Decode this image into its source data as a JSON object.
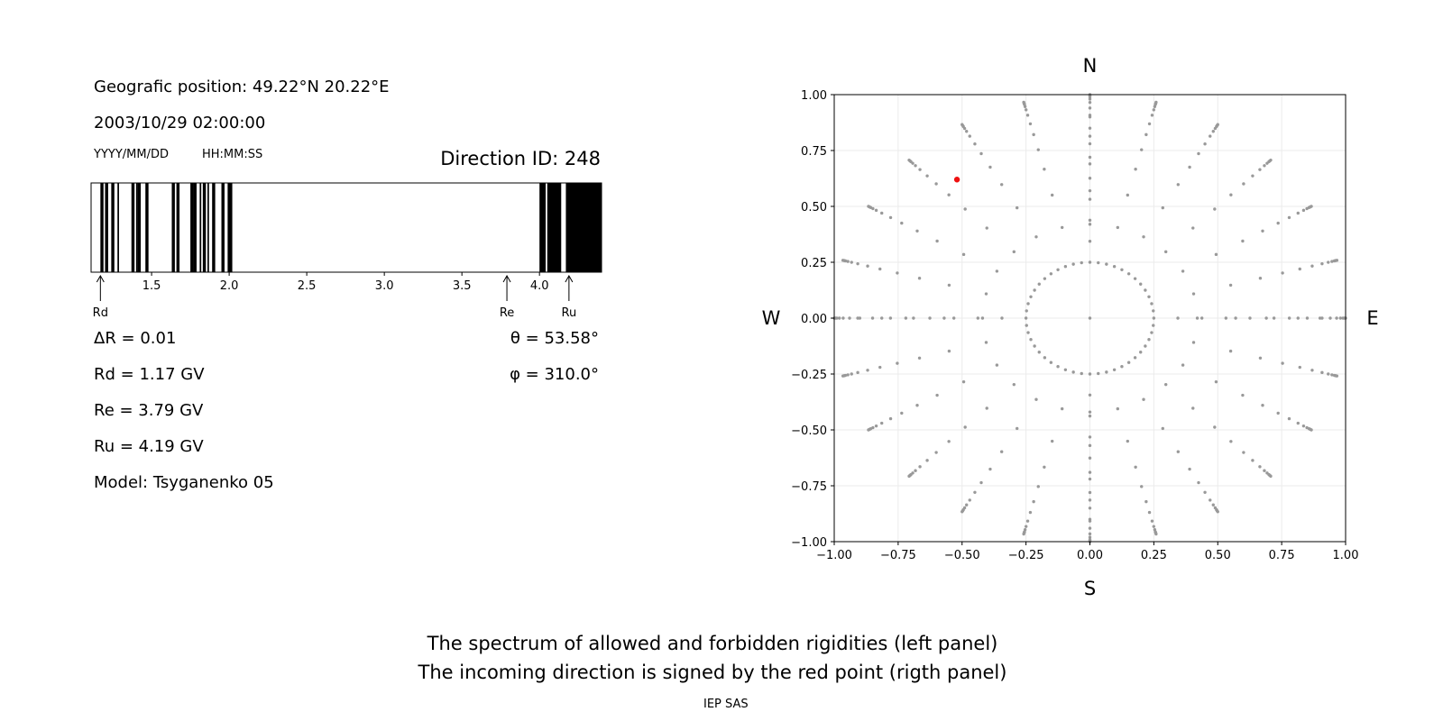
{
  "info": {
    "position": "Geografic position: 49.22°N 20.22°E",
    "datetime": "2003/10/29 02:00:00",
    "date_format": "YYYY/MM/DD",
    "time_format": "HH:MM:SS",
    "direction_id": "Direction ID: 248",
    "delta_r": "ΔR = 0.01",
    "rd": "Rd = 1.17 GV",
    "re": "Re = 3.79 GV",
    "ru": "Ru = 4.19 GV",
    "model": "Model: Tsyganenko 05",
    "theta": "θ = 53.58°",
    "phi": "φ = 310.0°"
  },
  "captions": {
    "line1": "The spectrum of allowed and forbidden rigidities (left panel)",
    "line2": "The incoming direction is signed by the red point (rigth panel)",
    "credit": "IEP SAS"
  },
  "chart_data": [
    {
      "type": "bar",
      "name": "rigidity-spectrum",
      "xlim": [
        1.11,
        4.4
      ],
      "ticks": [
        1.5,
        2.0,
        2.5,
        3.0,
        3.5,
        4.0
      ],
      "tick_labels": [
        "1.5",
        "2.0",
        "2.5",
        "3.0",
        "3.5",
        "4.0"
      ],
      "forbidden_intervals": [
        [
          1.17,
          1.19
        ],
        [
          1.2,
          1.22
        ],
        [
          1.24,
          1.26
        ],
        [
          1.28,
          1.29
        ],
        [
          1.37,
          1.39
        ],
        [
          1.4,
          1.41
        ],
        [
          1.41,
          1.43
        ],
        [
          1.46,
          1.48
        ],
        [
          1.63,
          1.65
        ],
        [
          1.66,
          1.68
        ],
        [
          1.75,
          1.77
        ],
        [
          1.77,
          1.79
        ],
        [
          1.81,
          1.82
        ],
        [
          1.83,
          1.85
        ],
        [
          1.86,
          1.87
        ],
        [
          1.89,
          1.91
        ],
        [
          1.95,
          1.97
        ],
        [
          1.99,
          2.02
        ],
        [
          4.0,
          4.04
        ],
        [
          4.05,
          4.14
        ],
        [
          4.17,
          4.4
        ]
      ],
      "markers": [
        {
          "label": "Rd",
          "value": 1.17
        },
        {
          "label": "Re",
          "value": 3.79
        },
        {
          "label": "Ru",
          "value": 4.19
        }
      ],
      "colors": {
        "forbidden": "#000000",
        "allowed": "#ffffff"
      }
    },
    {
      "type": "scatter",
      "name": "direction-map",
      "xlim": [
        -1.0,
        1.0
      ],
      "ylim": [
        -1.0,
        1.0
      ],
      "ticks": [
        -1.0,
        -0.75,
        -0.5,
        -0.25,
        0.0,
        0.25,
        0.5,
        0.75,
        1.0
      ],
      "tick_labels": [
        "−1.00",
        "−0.75",
        "−0.50",
        "−0.25",
        "0.00",
        "0.25",
        "0.50",
        "0.75",
        "1.00"
      ],
      "grid": true,
      "compass": {
        "top": "N",
        "bottom": "S",
        "left": "W",
        "right": "E"
      },
      "grid_pattern": {
        "rays_every_deg": 15,
        "ring_radii": [
          0,
          0.25,
          0.42,
          0.57,
          0.69,
          0.78,
          0.85,
          0.9,
          0.94,
          0.965,
          0.98,
          0.99,
          0.995,
          1.0
        ],
        "inner_ring": {
          "radius": 0.25,
          "points": 48
        }
      },
      "colors": {
        "grid_points": "#999999",
        "selected": "#ee1111"
      },
      "selected_point": {
        "x": -0.52,
        "y": 0.62
      }
    }
  ]
}
